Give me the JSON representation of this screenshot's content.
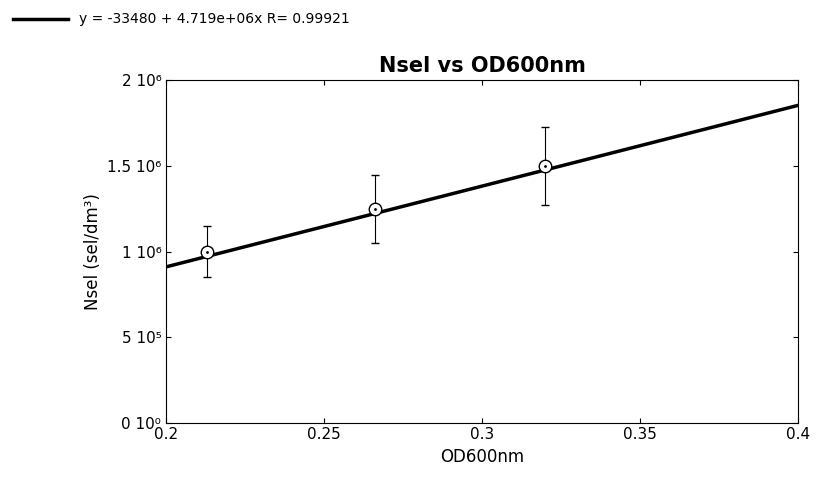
{
  "chart_data": {
    "type": "scatter",
    "title": "Nsel vs OD600nm",
    "x_label": "OD600nm",
    "y_label": "Nsel (sel/dm³)",
    "xlim": [
      0.2,
      0.4
    ],
    "xticks": [
      0.2,
      0.25,
      0.3,
      0.35,
      0.4
    ],
    "ylim": [
      0,
      2000000
    ],
    "yticks": [
      {
        "value": 0,
        "label": "0 10⁰"
      },
      {
        "value": 500000,
        "label": "5 10⁵"
      },
      {
        "value": 1000000,
        "label": "1 10⁶"
      },
      {
        "value": 1500000,
        "label": "1.5 10⁶"
      },
      {
        "value": 2000000,
        "label": "2 10⁶"
      }
    ],
    "grid": false,
    "legend": "upper left",
    "series": [
      {
        "name": "y = -33480 + 4.719e+06x R= 0.99921",
        "type": "line",
        "color": "#000000",
        "line_style": "solid",
        "x": [
          0.2,
          0.4
        ],
        "values": [
          910320,
          1854120
        ]
      },
      {
        "type": "scatter",
        "color": "#000000",
        "marker": "o",
        "x": [
          0.213,
          0.266,
          0.32
        ],
        "values": [
          1000000,
          1250000,
          1500000
        ],
        "errors": [
          150000,
          200000,
          230000
        ]
      }
    ]
  }
}
